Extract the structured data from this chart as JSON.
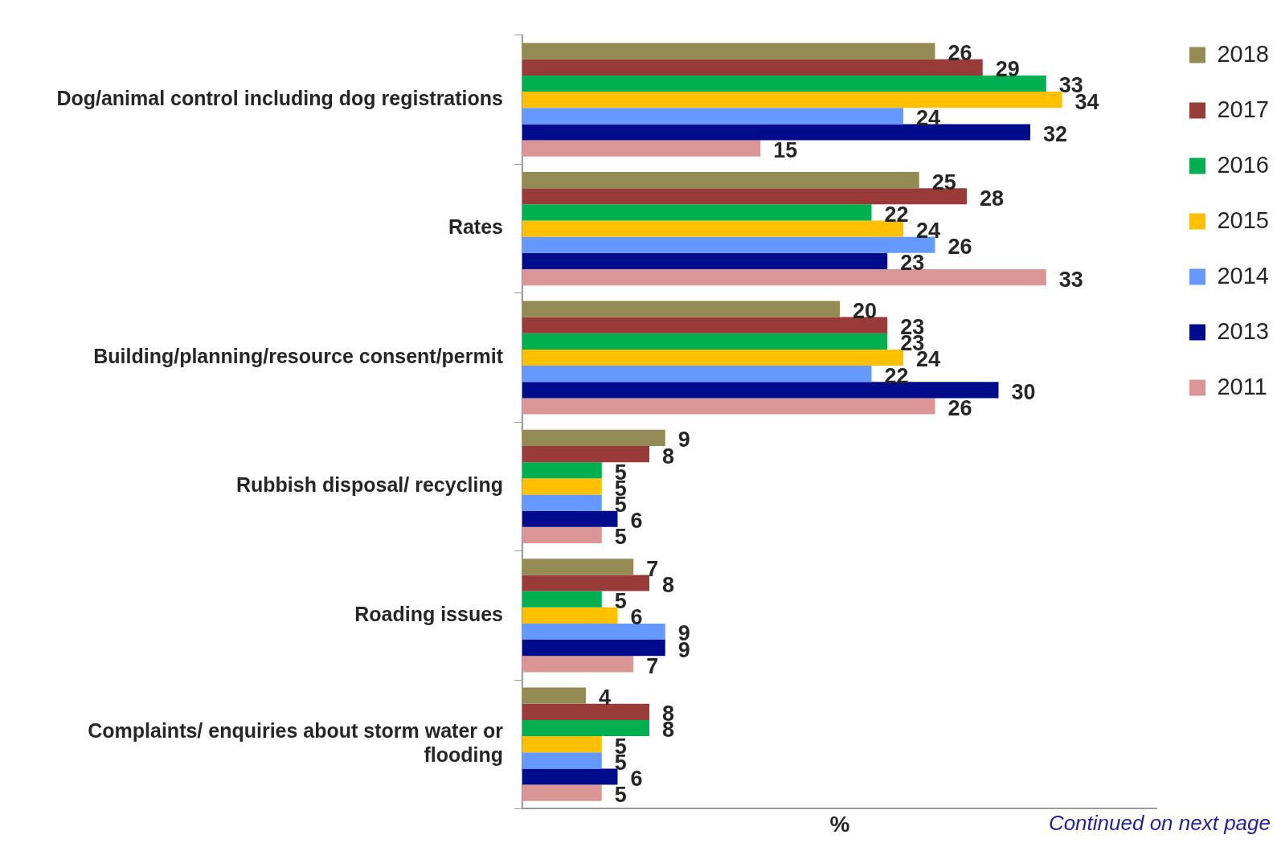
{
  "chart_data": {
    "type": "bar",
    "orientation": "horizontal",
    "xlabel": "%",
    "categories": [
      "Dog/animal control including dog registrations",
      "Rates",
      "Building/planning/resource consent/permit",
      "Rubbish disposal/ recycling",
      "Roading issues",
      "Complaints/ enquiries about storm water or flooding"
    ],
    "series": [
      {
        "name": "2018",
        "color": "#948a54",
        "values": [
          26,
          25,
          20,
          9,
          7,
          4
        ]
      },
      {
        "name": "2017",
        "color": "#983b39",
        "values": [
          29,
          28,
          23,
          8,
          8,
          8
        ]
      },
      {
        "name": "2016",
        "color": "#00b050",
        "values": [
          33,
          22,
          23,
          5,
          5,
          8
        ]
      },
      {
        "name": "2015",
        "color": "#ffc000",
        "values": [
          34,
          24,
          24,
          5,
          6,
          5
        ]
      },
      {
        "name": "2014",
        "color": "#6699ff",
        "values": [
          24,
          26,
          22,
          5,
          9,
          5
        ]
      },
      {
        "name": "2013",
        "color": "#000c8c",
        "values": [
          32,
          23,
          30,
          6,
          9,
          6
        ]
      },
      {
        "name": "2011",
        "color": "#d99694",
        "values": [
          15,
          33,
          26,
          5,
          7,
          5
        ]
      }
    ],
    "xlim": [
      0,
      40
    ],
    "tick_labels": "y",
    "legend": "top right",
    "data_labels": true,
    "annotations": [
      "Continued on next page"
    ]
  }
}
